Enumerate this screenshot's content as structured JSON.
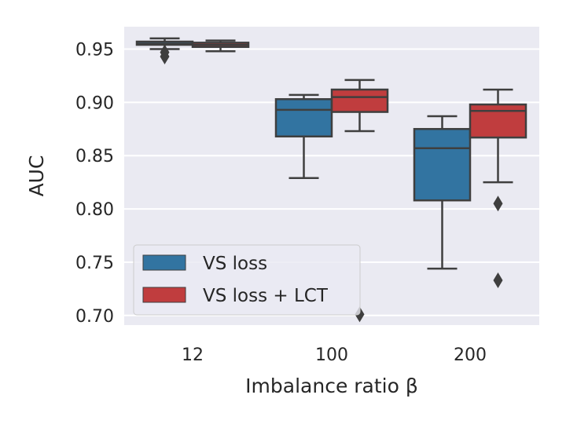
{
  "chart_data": {
    "type": "box",
    "xlabel": "Imbalance ratio β",
    "ylabel": "AUC",
    "categories": [
      "12",
      "100",
      "200"
    ],
    "ylim": [
      0.691,
      0.971
    ],
    "yticks": [
      "0.70",
      "0.75",
      "0.80",
      "0.85",
      "0.90",
      "0.95"
    ],
    "ytick_values": [
      0.7,
      0.75,
      0.8,
      0.85,
      0.9,
      0.95
    ],
    "grid": true,
    "legend_position": "bottom-left",
    "series": [
      {
        "name": "VS loss",
        "color": "#3274a1",
        "boxes": [
          {
            "whislo": 0.95,
            "q1": 0.954,
            "med": 0.955,
            "q3": 0.957,
            "whishi": 0.96,
            "fliers": [
              0.947,
              0.943
            ]
          },
          {
            "whislo": 0.829,
            "q1": 0.868,
            "med": 0.893,
            "q3": 0.903,
            "whishi": 0.907,
            "fliers": []
          },
          {
            "whislo": 0.744,
            "q1": 0.808,
            "med": 0.857,
            "q3": 0.875,
            "whishi": 0.887,
            "fliers": []
          }
        ]
      },
      {
        "name": "VS loss + LCT",
        "color": "#c03d3e",
        "boxes": [
          {
            "whislo": 0.948,
            "q1": 0.952,
            "med": 0.954,
            "q3": 0.956,
            "whishi": 0.958,
            "fliers": []
          },
          {
            "whislo": 0.873,
            "q1": 0.891,
            "med": 0.905,
            "q3": 0.912,
            "whishi": 0.921,
            "fliers": [
              0.701
            ]
          },
          {
            "whislo": 0.825,
            "q1": 0.867,
            "med": 0.892,
            "q3": 0.898,
            "whishi": 0.912,
            "fliers": [
              0.805,
              0.733
            ]
          }
        ]
      }
    ]
  }
}
